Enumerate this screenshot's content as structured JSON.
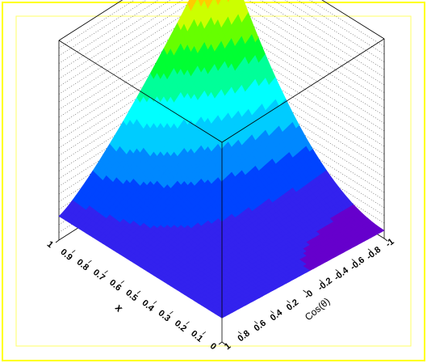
{
  "chart_data": {
    "type": "surface3d",
    "title": "",
    "xlabel": "x",
    "ylabel": "Cos(θ)",
    "zlabel": "",
    "x_range": [
      0,
      1
    ],
    "y_range": [
      -1,
      1
    ],
    "x_ticks": [
      "0",
      "0.1",
      "0.2",
      "0.3",
      "0.4",
      "0.5",
      "0.6",
      "0.7",
      "0.8",
      "0.9",
      "1"
    ],
    "y_ticks": [
      "1",
      "0.8",
      "0.6",
      "0.4",
      "0.2",
      "-0",
      "-0.2",
      "-0.4",
      "-0.6",
      "-0.8",
      "-1"
    ],
    "colormap": [
      "#6600cc",
      "#3322ee",
      "#0044ff",
      "#0088ff",
      "#00ccff",
      "#00ffff",
      "#00ff99",
      "#00ff33",
      "#66ff00",
      "#ccff00",
      "#ffcc00",
      "#ff6600",
      "#ff0000"
    ],
    "frame_color": "#ffff00",
    "background": "#ffffff",
    "grid": true
  }
}
